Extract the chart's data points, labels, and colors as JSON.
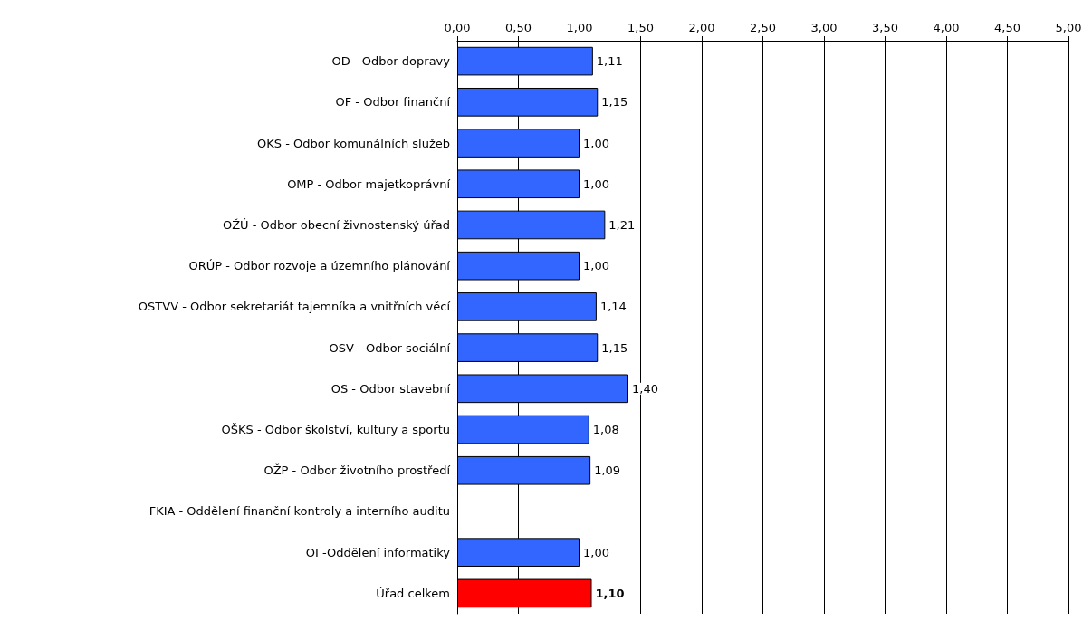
{
  "chart_data": {
    "type": "bar",
    "orientation": "horizontal",
    "categories": [
      "OD - Odbor dopravy",
      "OF - Odbor finanční",
      "OKS - Odbor komunálních služeb",
      "OMP - Odbor majetkoprávní",
      "OŽÚ - Odbor obecní živnostenský úřad",
      "ORÚP - Odbor rozvoje a územního plánování",
      "OSTVV - Odbor sekretariát tajemníka a vnitřních věcí",
      "OSV - Odbor sociální",
      "OS - Odbor stavební",
      "OŠKS - Odbor školství, kultury a sportu",
      "OŽP - Odbor životního prostředí",
      "FKIA - Oddělení finanční kontroly a interního auditu",
      "OI -Oddělení informatiky",
      "Úřad celkem"
    ],
    "values": [
      1.11,
      1.15,
      1.0,
      1.0,
      1.21,
      1.0,
      1.14,
      1.15,
      1.4,
      1.08,
      1.09,
      null,
      1.0,
      1.1
    ],
    "value_labels": [
      "1,11",
      "1,15",
      "1,00",
      "1,00",
      "1,21",
      "1,00",
      "1,14",
      "1,15",
      "1,40",
      "1,08",
      "1,09",
      null,
      "1,00",
      "1,10"
    ],
    "colors": [
      "#3366ff",
      "#3366ff",
      "#3366ff",
      "#3366ff",
      "#3366ff",
      "#3366ff",
      "#3366ff",
      "#3366ff",
      "#3366ff",
      "#3366ff",
      "#3366ff",
      "#3366ff",
      "#3366ff",
      "#ff0000"
    ],
    "xlim": [
      0,
      5
    ],
    "xticks": [
      {
        "value": 0,
        "label": "0,00"
      },
      {
        "value": 0.5,
        "label": "0,50"
      },
      {
        "value": 1,
        "label": "1,00"
      },
      {
        "value": 1.5,
        "label": "1,50"
      },
      {
        "value": 2,
        "label": "2,00"
      },
      {
        "value": 2.5,
        "label": "2,50"
      },
      {
        "value": 3,
        "label": "3,00"
      },
      {
        "value": 3.5,
        "label": "3,50"
      },
      {
        "value": 4,
        "label": "4,00"
      },
      {
        "value": 4.5,
        "label": "4,50"
      },
      {
        "value": 5,
        "label": "5,00"
      }
    ],
    "grid": "x"
  }
}
